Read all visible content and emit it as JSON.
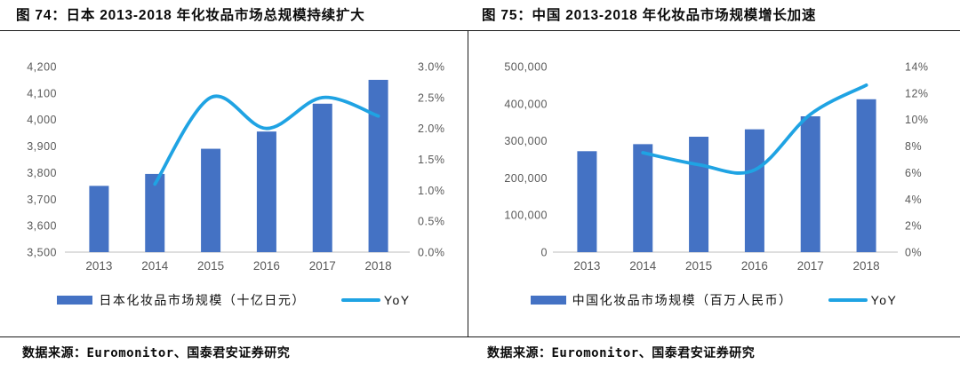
{
  "colors": {
    "bar": "#4472C4",
    "line": "#1FA3E3",
    "axis_text": "#595959",
    "axis_line": "#C9C9C9",
    "rule": "#1A1A1A"
  },
  "panels": [
    {
      "title": "图 74：日本 2013-2018 年化妆品市场总规模持续扩大",
      "legend": {
        "bar_label": "日本化妆品市场规模（十亿日元）",
        "line_label": "YoY"
      },
      "source": "数据来源：Euromonitor、国泰君安证券研究"
    },
    {
      "title": "图 75：中国 2013-2018 年化妆品市场规模增长加速",
      "legend": {
        "bar_label": "中国化妆品市场规模（百万人民币）",
        "line_label": "YoY"
      },
      "source": "数据来源：Euromonitor、国泰君安证券研究"
    }
  ],
  "chart_data": [
    {
      "type": "bar",
      "title": "图 74：日本 2013-2018 年化妆品市场总规模持续扩大",
      "categories": [
        "2013",
        "2014",
        "2015",
        "2016",
        "2017",
        "2018"
      ],
      "series": [
        {
          "name": "日本化妆品市场规模（十亿日元）",
          "type": "bar",
          "yaxis": "left",
          "values": [
            3750,
            3795,
            3890,
            3955,
            4060,
            4150
          ]
        },
        {
          "name": "YoY",
          "type": "line",
          "yaxis": "right",
          "values": [
            null,
            1.1,
            2.5,
            2.0,
            2.5,
            2.2
          ]
        }
      ],
      "left_axis": {
        "min": 3500,
        "max": 4200,
        "tick_labels": [
          "4,200",
          "4,100",
          "4,000",
          "3,900",
          "3,800",
          "3,700",
          "3,600",
          "3,500"
        ]
      },
      "right_axis": {
        "min": 0,
        "max": 3,
        "tick_labels": [
          "3.0%",
          "2.5%",
          "2.0%",
          "1.5%",
          "1.0%",
          "0.5%",
          "0.0%"
        ]
      },
      "grid": false,
      "legend_position": "bottom"
    },
    {
      "type": "bar",
      "title": "图 75：中国 2013-2018 年化妆品市场规模增长加速",
      "categories": [
        "2013",
        "2014",
        "2015",
        "2016",
        "2017",
        "2018"
      ],
      "series": [
        {
          "name": "中国化妆品市场规模（百万人民币）",
          "type": "bar",
          "yaxis": "left",
          "values": [
            272000,
            291000,
            311000,
            331000,
            366000,
            412000
          ]
        },
        {
          "name": "YoY",
          "type": "line",
          "yaxis": "right",
          "values": [
            null,
            7.5,
            6.6,
            6.2,
            10.4,
            12.6
          ]
        }
      ],
      "left_axis": {
        "min": 0,
        "max": 500000,
        "tick_labels": [
          "500,000",
          "400,000",
          "300,000",
          "200,000",
          "100,000",
          "0"
        ]
      },
      "right_axis": {
        "min": 0,
        "max": 14,
        "tick_labels": [
          "14%",
          "12%",
          "10%",
          "8%",
          "6%",
          "4%",
          "2%",
          "0%"
        ]
      },
      "grid": false,
      "legend_position": "bottom"
    }
  ]
}
